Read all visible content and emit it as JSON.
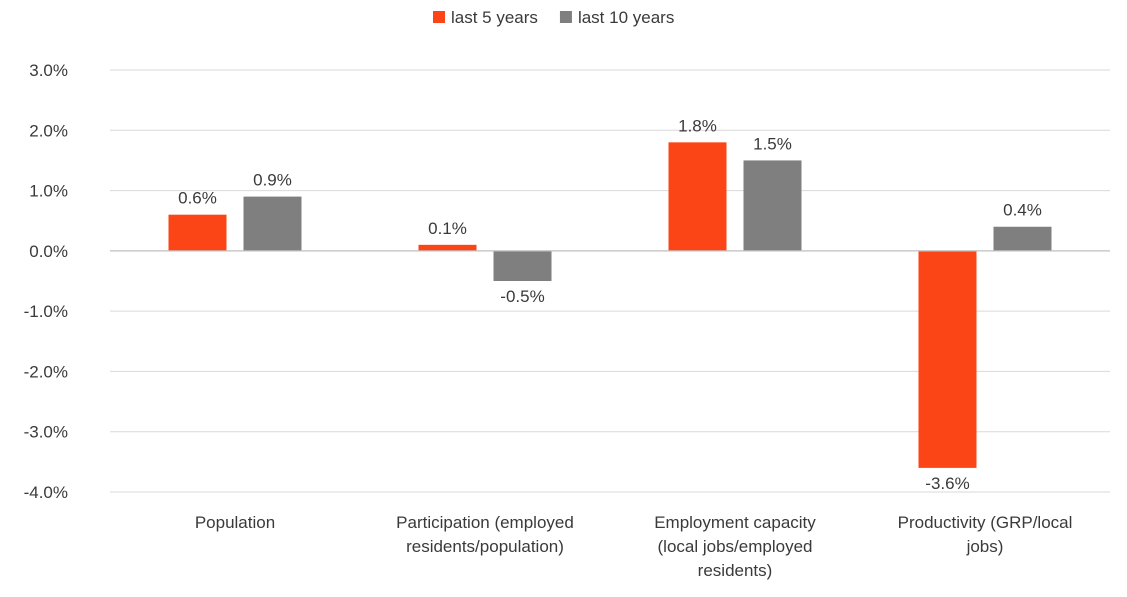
{
  "chart_data": {
    "type": "bar",
    "categories": [
      [
        "Population"
      ],
      [
        "Participation (employed",
        "residents/population)"
      ],
      [
        "Employment capacity",
        "(local jobs/employed",
        "residents)"
      ],
      [
        "Productivity (GRP/local",
        "jobs)"
      ]
    ],
    "series": [
      {
        "name": "last 5 years",
        "color": "#fc4516",
        "values": [
          0.6,
          0.1,
          1.8,
          -3.6
        ],
        "labels": [
          "0.6%",
          "0.1%",
          "1.8%",
          "-3.6%"
        ]
      },
      {
        "name": "last 10 years",
        "color": "#7f7f7f",
        "values": [
          0.9,
          -0.5,
          1.5,
          0.4
        ],
        "labels": [
          "0.9%",
          "-0.5%",
          "1.5%",
          "0.4%"
        ]
      }
    ],
    "ylim": [
      -4,
      3
    ],
    "yticks": [
      3,
      2,
      1,
      0,
      -1,
      -2,
      -3,
      -4
    ],
    "ytick_labels": [
      "3.0%",
      "2.0%",
      "1.0%",
      "0.0%",
      "-1.0%",
      "-2.0%",
      "-3.0%",
      "-4.0%"
    ],
    "grid": true,
    "legend_position": "top-center",
    "title": "",
    "xlabel": "",
    "ylabel": ""
  }
}
